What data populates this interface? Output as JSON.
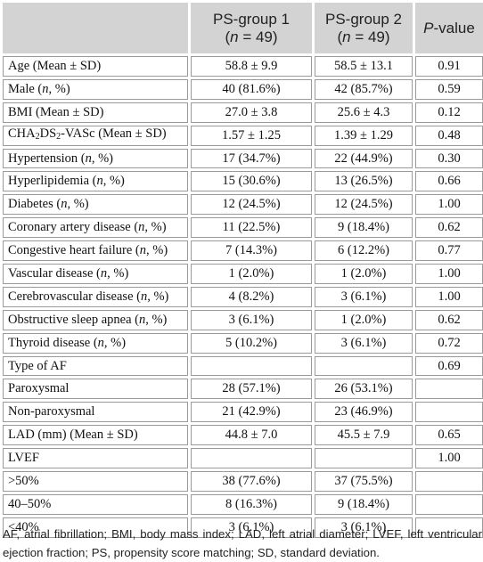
{
  "header": {
    "col0": "",
    "col1_line1": "PS-group 1",
    "col1_n": "n",
    "col1_rest": " = 49)",
    "col2_line1": "PS-group 2",
    "col2_n": "n",
    "col2_rest": " = 49)",
    "col3_p": "P",
    "col3_rest": "-value"
  },
  "rows": [
    {
      "label": "Age (Mean ± SD)",
      "g1": "58.8 ± 9.9",
      "g2": "58.5 ± 13.1",
      "p": "0.91"
    },
    {
      "label": "Male (n, %)",
      "g1": "40 (81.6%)",
      "g2": "42 (85.7%)",
      "p": "0.59"
    },
    {
      "label": "BMI (Mean ± SD)",
      "g1": "27.0 ± 3.8",
      "g2": "25.6 ± 4.3",
      "p": "0.12"
    },
    {
      "label": "CHA2DS2-VASc (Mean ± SD)",
      "g1": "1.57 ± 1.25",
      "g2": "1.39 ± 1.29",
      "p": "0.48"
    },
    {
      "label": "Hypertension (n, %)",
      "g1": "17 (34.7%)",
      "g2": "22 (44.9%)",
      "p": "0.30"
    },
    {
      "label": "Hyperlipidemia (n, %)",
      "g1": "15 (30.6%)",
      "g2": "13 (26.5%)",
      "p": "0.66"
    },
    {
      "label": "Diabetes (n, %)",
      "g1": "12 (24.5%)",
      "g2": "12 (24.5%)",
      "p": "1.00"
    },
    {
      "label": "Coronary artery disease (n, %)",
      "g1": "11 (22.5%)",
      "g2": "9 (18.4%)",
      "p": "0.62"
    },
    {
      "label": "Congestive heart failure (n, %)",
      "g1": "7 (14.3%)",
      "g2": "6 (12.2%)",
      "p": "0.77"
    },
    {
      "label": "Vascular disease (n, %)",
      "g1": "1 (2.0%)",
      "g2": "1 (2.0%)",
      "p": "1.00"
    },
    {
      "label": "Cerebrovascular disease (n, %)",
      "g1": "4 (8.2%)",
      "g2": "3 (6.1%)",
      "p": "1.00"
    },
    {
      "label": "Obstructive sleep apnea (n, %)",
      "g1": "3 (6.1%)",
      "g2": "1 (2.0%)",
      "p": "0.62"
    },
    {
      "label": "Thyroid disease (n, %)",
      "g1": "5 (10.2%)",
      "g2": "3 (6.1%)",
      "p": "0.72"
    },
    {
      "label": "Type of AF",
      "g1": "",
      "g2": "",
      "p": "0.69"
    },
    {
      "label": "Paroxysmal",
      "g1": "28 (57.1%)",
      "g2": "26 (53.1%)",
      "p": ""
    },
    {
      "label": "Non-paroxysmal",
      "g1": "21 (42.9%)",
      "g2": "23 (46.9%)",
      "p": ""
    },
    {
      "label": "LAD (mm) (Mean ± SD)",
      "g1": "44.8 ± 7.0",
      "g2": "45.5 ± 7.9",
      "p": "0.65"
    },
    {
      "label": "LVEF",
      "g1": "",
      "g2": "",
      "p": "1.00"
    },
    {
      "label": ">50%",
      "g1": "38 (77.6%)",
      "g2": "37 (75.5%)",
      "p": ""
    },
    {
      "label": "40–50%",
      "g1": "8 (16.3%)",
      "g2": "9 (18.4%)",
      "p": ""
    },
    {
      "label": "<40%",
      "g1": "3 (6.1%)",
      "g2": "3 (6.1%)",
      "p": ""
    }
  ],
  "footnote": "AF, atrial fibrillation; BMI, body mass index; LAD, left atrial diameter; LVEF, left ventricular ejection fraction; PS, propensity score matching; SD, standard deviation."
}
